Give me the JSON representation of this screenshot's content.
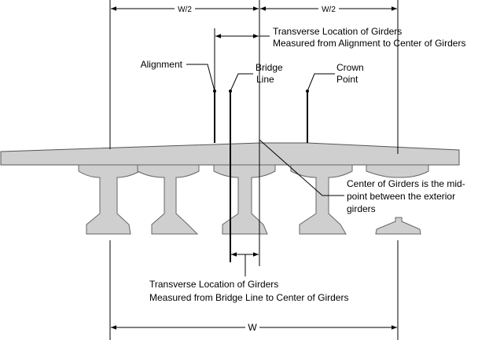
{
  "labels": {
    "half_width_left": "W/2",
    "half_width_right": "W/2",
    "transverse_alignment_line1": "Transverse Location of Girders",
    "transverse_alignment_line2": "Measured from Alignment to Center of Girders",
    "alignment": "Alignment",
    "bridge_line_line1": "Bridge",
    "bridge_line_line2": "Line",
    "crown_point_line1": "Crown",
    "crown_point_line2": "Point",
    "center_girders_line1": "Center of Girders is the mid-",
    "center_girders_line2": "point between the exterior",
    "center_girders_line3": "girders",
    "transverse_bridgeline_line1": "Transverse Location of Girders",
    "transverse_bridgeline_line2": "Measured from Bridge Line to Center of Girders",
    "total_width": "W"
  },
  "colors": {
    "concrete_fill": "#cfcfcf",
    "outline": "#555555",
    "line": "#000000"
  }
}
